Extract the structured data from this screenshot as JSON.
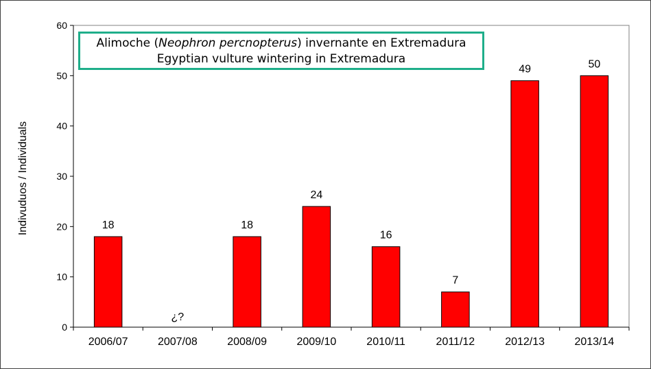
{
  "chart_data": {
    "type": "bar",
    "title": {
      "line1_prefix": "Alimoche (",
      "line1_italic": "Neophron percnopterus",
      "line1_suffix": ") invernante en Extremadura",
      "line2": "Egyptian vulture wintering in Extremadura"
    },
    "ylabel": "Indivuduos / Individuals",
    "xlabel": "",
    "ylim": [
      0,
      60
    ],
    "yticks": [
      "0",
      "10",
      "20",
      "30",
      "40",
      "50",
      "60"
    ],
    "grid": false,
    "categories": [
      "2006/07",
      "2007/08",
      "2008/09",
      "2009/10",
      "2010/11",
      "2011/12",
      "2012/13",
      "2013/14"
    ],
    "values": [
      18,
      null,
      18,
      24,
      16,
      7,
      49,
      50
    ],
    "data_labels": [
      "18",
      "¿?",
      "18",
      "24",
      "16",
      "7",
      "49",
      "50"
    ],
    "bar_color": "#ff0000",
    "bar_edge_color": "#000000"
  }
}
